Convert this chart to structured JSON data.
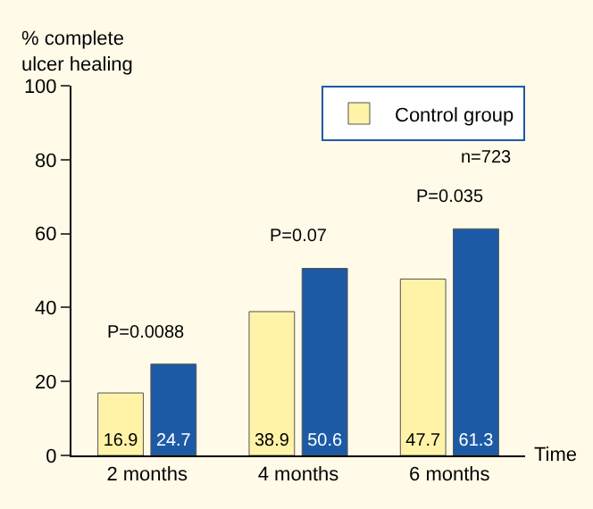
{
  "chart_data": {
    "type": "bar",
    "ylabel": "% complete\nulcer healing",
    "xlabel": "Time",
    "categories": [
      "2 months",
      "4 months",
      "6 months"
    ],
    "series": [
      {
        "name": "Control group",
        "color": "#fff3a8",
        "values": [
          16.9,
          38.9,
          47.7
        ]
      },
      {
        "color": "#1d5aa6",
        "values": [
          24.7,
          50.6,
          61.3
        ]
      }
    ],
    "ylim": [
      0,
      100
    ],
    "yticks": [
      0,
      20,
      40,
      60,
      80,
      100
    ],
    "grid": false,
    "legend": "top right",
    "data_labels": true,
    "annotations": [
      "P=0.0088",
      "P=0.07",
      "P=0.035",
      "n=723"
    ]
  }
}
